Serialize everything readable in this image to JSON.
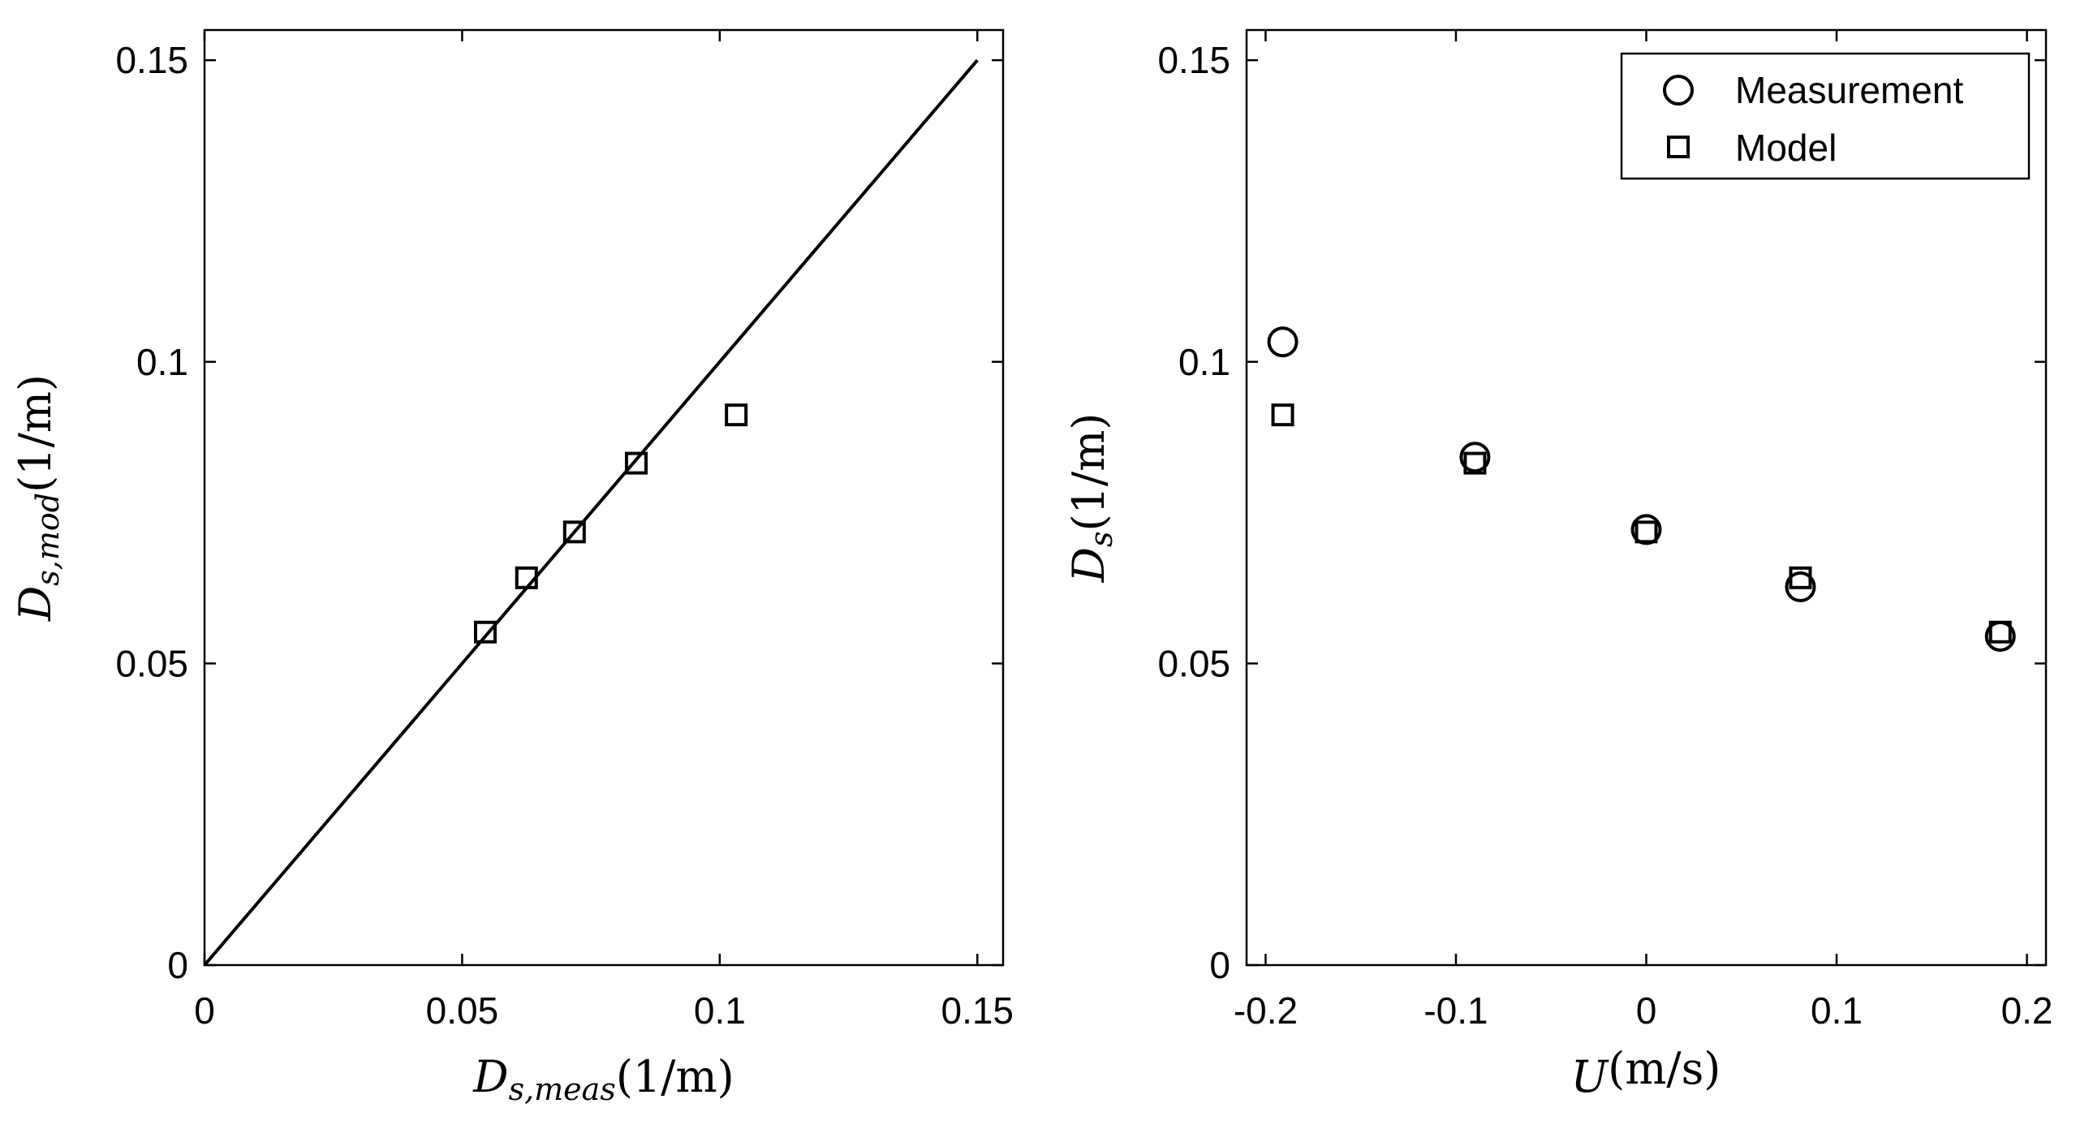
{
  "chart_data": [
    {
      "type": "scatter",
      "title": "",
      "xlabel": {
        "main": "D",
        "sub": "s,meas",
        "rest": "(1/m)"
      },
      "ylabel": {
        "main": "D",
        "sub": "s,mod",
        "rest": "(1/m)"
      },
      "xlim": [
        0,
        0.155
      ],
      "ylim": [
        0,
        0.155
      ],
      "xticks": [
        0,
        0.05,
        0.1,
        0.15
      ],
      "xtick_labels": [
        "0",
        "0.05",
        "0.1",
        "0.15"
      ],
      "yticks": [
        0,
        0.05,
        0.1,
        0.15
      ],
      "ytick_labels": [
        "0",
        "0.05",
        "0.1",
        "0.15"
      ],
      "grid": false,
      "reference_line": {
        "x": [
          0,
          0.15
        ],
        "y": [
          0,
          0.15
        ]
      },
      "series": [
        {
          "marker": "square",
          "points": [
            {
              "x": 0.0545,
              "y": 0.0552
            },
            {
              "x": 0.0625,
              "y": 0.0642
            },
            {
              "x": 0.0718,
              "y": 0.0718
            },
            {
              "x": 0.0838,
              "y": 0.0832
            },
            {
              "x": 0.1032,
              "y": 0.0912
            }
          ]
        }
      ]
    },
    {
      "type": "scatter",
      "title": "",
      "xlabel": {
        "main": "U",
        "sub": "",
        "rest": "(m/s)"
      },
      "ylabel": {
        "main": "D",
        "sub": "s",
        "rest": "(1/m)"
      },
      "xlim": [
        -0.21,
        0.21
      ],
      "ylim": [
        0,
        0.155
      ],
      "xticks": [
        -0.2,
        -0.1,
        0,
        0.1,
        0.2
      ],
      "xtick_labels": [
        "-0.2",
        "-0.1",
        "0",
        "0.1",
        "0.2"
      ],
      "yticks": [
        0,
        0.05,
        0.1,
        0.15
      ],
      "ytick_labels": [
        "0",
        "0.05",
        "0.1",
        "0.15"
      ],
      "grid": false,
      "legend_position": "top-right",
      "series": [
        {
          "name": "Measurement",
          "marker": "circle",
          "points": [
            {
              "x": -0.191,
              "y": 0.1033
            },
            {
              "x": -0.09,
              "y": 0.0842
            },
            {
              "x": 0.0,
              "y": 0.0722
            },
            {
              "x": 0.081,
              "y": 0.0627
            },
            {
              "x": 0.186,
              "y": 0.0545
            }
          ]
        },
        {
          "name": "Model",
          "marker": "square",
          "points": [
            {
              "x": -0.191,
              "y": 0.0912
            },
            {
              "x": -0.09,
              "y": 0.0832
            },
            {
              "x": 0.0,
              "y": 0.0718
            },
            {
              "x": 0.081,
              "y": 0.0642
            },
            {
              "x": 0.186,
              "y": 0.0552
            }
          ]
        }
      ]
    }
  ]
}
